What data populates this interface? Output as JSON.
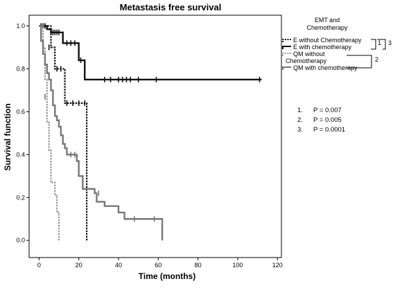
{
  "chart_data": {
    "type": "line",
    "title": "Metastasis free survival",
    "xlabel": "Time (months)",
    "ylabel": "Survival function",
    "xlim": [
      -5,
      122
    ],
    "ylim": [
      -0.08,
      1.05
    ],
    "xticks": [
      "0",
      "20",
      "40",
      "60",
      "80",
      "100",
      "120"
    ],
    "xtick_values": [
      0,
      20,
      40,
      60,
      80,
      100,
      120
    ],
    "yticks": [
      "0.0",
      "0.2",
      "0.4",
      "0.6",
      "0.8",
      "1.0"
    ],
    "ytick_values": [
      0,
      0.2,
      0.4,
      0.6,
      0.8,
      1.0
    ],
    "legend": {
      "title_line1": "EMT and",
      "title_line2": "Chemotherapy",
      "placement": "top-right outside plot",
      "entries": [
        {
          "label": "E without Chemotherapy"
        },
        {
          "label": "E with chemotherapy"
        },
        {
          "label": "QM without"
        },
        {
          "label": "Chemotherapy"
        },
        {
          "label": "QM with chemotherapy"
        }
      ],
      "bracket_labels": [
        "1",
        "3",
        "2"
      ]
    },
    "pvalues": [
      {
        "num": "1.",
        "text": "P = 0.007"
      },
      {
        "num": "2.",
        "text": "P = 0.005"
      },
      {
        "num": "3.",
        "text": "P = 0.0001"
      }
    ],
    "series": [
      {
        "name": "E without Chemotherapy",
        "color": "#111111",
        "dash": "dotted",
        "steps": [
          [
            0,
            1.0
          ],
          [
            6,
            0.9
          ],
          [
            8,
            0.8
          ],
          [
            13,
            0.64
          ],
          [
            24,
            0.64
          ],
          [
            24,
            0.0
          ]
        ],
        "censored": [
          [
            5,
            0.9
          ],
          [
            9,
            0.8
          ],
          [
            11,
            0.8
          ],
          [
            14,
            0.64
          ],
          [
            17,
            0.64
          ],
          [
            20,
            0.64
          ],
          [
            23,
            0.64
          ]
        ]
      },
      {
        "name": "E with chemotherapy",
        "color": "#111111",
        "dash": "solid",
        "steps": [
          [
            0,
            1.0
          ],
          [
            4,
            0.985
          ],
          [
            6,
            0.97
          ],
          [
            12,
            0.92
          ],
          [
            20,
            0.84
          ],
          [
            23,
            0.75
          ],
          [
            112,
            0.75
          ]
        ],
        "censored": [
          [
            1,
            1.0
          ],
          [
            2,
            1.0
          ],
          [
            3,
            1.0
          ],
          [
            6,
            0.97
          ],
          [
            7,
            0.97
          ],
          [
            8,
            0.97
          ],
          [
            9,
            0.97
          ],
          [
            10,
            0.97
          ],
          [
            14,
            0.92
          ],
          [
            16,
            0.92
          ],
          [
            18,
            0.92
          ],
          [
            21,
            0.84
          ],
          [
            33,
            0.75
          ],
          [
            36,
            0.75
          ],
          [
            40,
            0.75
          ],
          [
            42,
            0.75
          ],
          [
            44,
            0.75
          ],
          [
            46,
            0.75
          ],
          [
            50,
            0.75
          ],
          [
            59,
            0.75
          ],
          [
            111,
            0.75
          ]
        ]
      },
      {
        "name": "QM without Chemotherapy",
        "color": "#999999",
        "dash": "dotted",
        "steps": [
          [
            0,
            1.0
          ],
          [
            2,
            0.9
          ],
          [
            3,
            0.75
          ],
          [
            4,
            0.55
          ],
          [
            5,
            0.42
          ],
          [
            6,
            0.27
          ],
          [
            8,
            0.21
          ],
          [
            9,
            0.13
          ],
          [
            10,
            0.0
          ]
        ],
        "censored": []
      },
      {
        "name": "QM with chemotherapy",
        "color": "#777777",
        "dash": "solid",
        "steps": [
          [
            0,
            1.0
          ],
          [
            1,
            0.93
          ],
          [
            2,
            0.87
          ],
          [
            3,
            0.82
          ],
          [
            4,
            0.78
          ],
          [
            5,
            0.75
          ],
          [
            6,
            0.7
          ],
          [
            7,
            0.63
          ],
          [
            8,
            0.58
          ],
          [
            9,
            0.56
          ],
          [
            10,
            0.53
          ],
          [
            11,
            0.49
          ],
          [
            12,
            0.45
          ],
          [
            13,
            0.43
          ],
          [
            14,
            0.4
          ],
          [
            19,
            0.37
          ],
          [
            20,
            0.3
          ],
          [
            22,
            0.24
          ],
          [
            28,
            0.22
          ],
          [
            29,
            0.18
          ],
          [
            33,
            0.16
          ],
          [
            40,
            0.13
          ],
          [
            43,
            0.1
          ],
          [
            62,
            0.0
          ]
        ],
        "censored": [
          [
            1,
            0.97
          ],
          [
            3,
            0.67
          ],
          [
            13,
            0.44
          ],
          [
            16,
            0.4
          ],
          [
            18,
            0.4
          ],
          [
            30,
            0.22
          ],
          [
            48,
            0.1
          ],
          [
            58,
            0.1
          ]
        ]
      }
    ]
  }
}
